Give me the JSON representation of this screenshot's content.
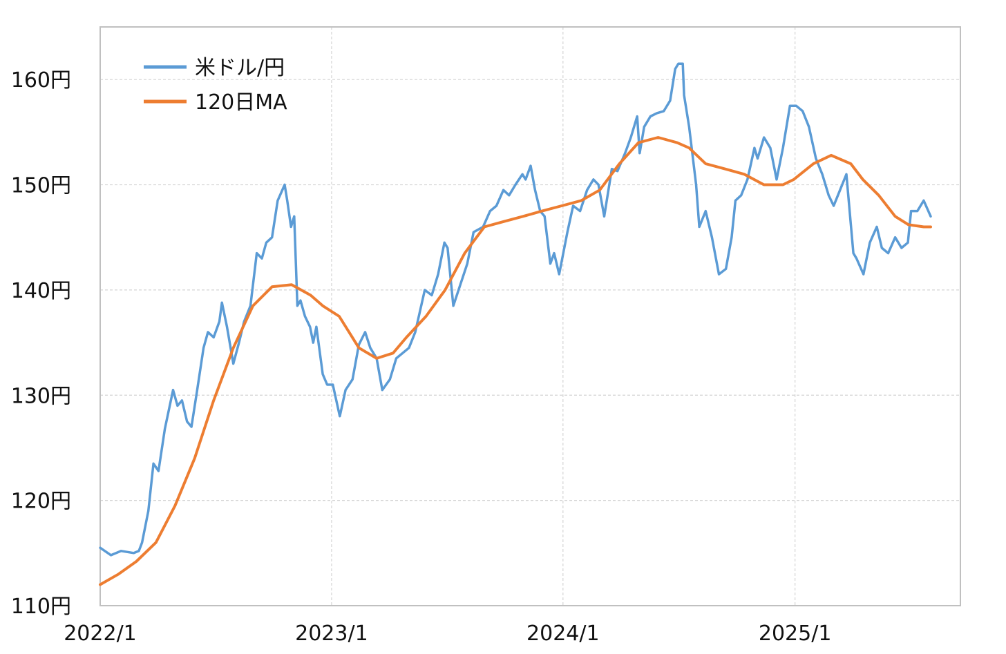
{
  "chart_data": {
    "type": "line",
    "title": "",
    "xlabel": "",
    "ylabel": "",
    "ylim": [
      110,
      165
    ],
    "xlim": [
      "2022-01-03",
      "2025-08-05"
    ],
    "y_ticks": [
      110,
      120,
      130,
      140,
      150,
      160
    ],
    "y_tick_labels": [
      "110円",
      "120円",
      "130円",
      "140円",
      "150円",
      "160円"
    ],
    "x_ticks": [
      "2022-01-03",
      "2023-01-03",
      "2024-01-03",
      "2025-01-03"
    ],
    "x_tick_labels": [
      "2022/1",
      "2023/1",
      "2024/1",
      "2025/1"
    ],
    "grid": true,
    "legend_position": "top-left",
    "series": [
      {
        "name": "米ドル/円",
        "color": "#5b9bd5",
        "x": [
          "2022-01-03",
          "2022-01-20",
          "2022-02-05",
          "2022-02-25",
          "2022-03-05",
          "2022-03-10",
          "2022-03-20",
          "2022-03-28",
          "2022-04-05",
          "2022-04-15",
          "2022-04-28",
          "2022-05-05",
          "2022-05-12",
          "2022-05-20",
          "2022-05-27",
          "2022-06-05",
          "2022-06-15",
          "2022-06-22",
          "2022-07-01",
          "2022-07-10",
          "2022-07-14",
          "2022-07-22",
          "2022-08-01",
          "2022-08-10",
          "2022-08-18",
          "2022-08-28",
          "2022-09-07",
          "2022-09-15",
          "2022-09-22",
          "2022-10-01",
          "2022-10-10",
          "2022-10-21",
          "2022-10-25",
          "2022-10-31",
          "2022-11-05",
          "2022-11-10",
          "2022-11-15",
          "2022-11-22",
          "2022-11-30",
          "2022-12-05",
          "2022-12-10",
          "2022-12-20",
          "2022-12-27",
          "2023-01-05",
          "2023-01-16",
          "2023-01-25",
          "2023-02-05",
          "2023-02-15",
          "2023-02-25",
          "2023-03-05",
          "2023-03-15",
          "2023-03-24",
          "2023-04-05",
          "2023-04-15",
          "2023-04-25",
          "2023-05-05",
          "2023-05-15",
          "2023-05-30",
          "2023-06-10",
          "2023-06-20",
          "2023-06-30",
          "2023-07-05",
          "2023-07-14",
          "2023-07-25",
          "2023-08-05",
          "2023-08-15",
          "2023-08-30",
          "2023-09-10",
          "2023-09-20",
          "2023-10-01",
          "2023-10-10",
          "2023-10-20",
          "2023-10-31",
          "2023-11-05",
          "2023-11-13",
          "2023-11-20",
          "2023-11-28",
          "2023-12-05",
          "2023-12-14",
          "2023-12-20",
          "2023-12-28",
          "2024-01-10",
          "2024-01-19",
          "2024-01-30",
          "2024-02-10",
          "2024-02-20",
          "2024-02-28",
          "2024-03-08",
          "2024-03-20",
          "2024-03-29",
          "2024-04-10",
          "2024-04-19",
          "2024-04-29",
          "2024-05-03",
          "2024-05-10",
          "2024-05-20",
          "2024-05-30",
          "2024-06-10",
          "2024-06-20",
          "2024-06-28",
          "2024-07-03",
          "2024-07-10",
          "2024-07-12",
          "2024-07-20",
          "2024-07-31",
          "2024-08-05",
          "2024-08-15",
          "2024-08-25",
          "2024-09-05",
          "2024-09-16",
          "2024-09-25",
          "2024-10-01",
          "2024-10-10",
          "2024-10-20",
          "2024-10-31",
          "2024-11-05",
          "2024-11-15",
          "2024-11-25",
          "2024-12-05",
          "2024-12-15",
          "2024-12-26",
          "2025-01-05",
          "2025-01-15",
          "2025-01-25",
          "2025-02-05",
          "2025-02-15",
          "2025-02-25",
          "2025-03-05",
          "2025-03-15",
          "2025-03-25",
          "2025-04-05",
          "2025-04-10",
          "2025-04-21",
          "2025-05-01",
          "2025-05-12",
          "2025-05-20",
          "2025-05-30",
          "2025-06-10",
          "2025-06-20",
          "2025-06-30",
          "2025-07-05",
          "2025-07-15",
          "2025-07-25",
          "2025-08-05"
        ],
        "y": [
          115.5,
          114.8,
          115.2,
          115.0,
          115.2,
          116.0,
          119.0,
          123.5,
          122.8,
          126.8,
          130.5,
          129.0,
          129.5,
          127.5,
          127.0,
          130.5,
          134.5,
          136.0,
          135.5,
          137.0,
          138.8,
          136.5,
          133.0,
          135.0,
          137.0,
          138.5,
          143.5,
          143.0,
          144.5,
          145.0,
          148.5,
          150.0,
          148.5,
          146.0,
          147.0,
          138.5,
          139.0,
          137.5,
          136.5,
          135.0,
          136.5,
          132.0,
          131.0,
          131.0,
          128.0,
          130.5,
          131.5,
          134.8,
          136.0,
          134.5,
          133.5,
          130.5,
          131.5,
          133.5,
          134.0,
          134.5,
          136.0,
          140.0,
          139.5,
          141.5,
          144.5,
          144.0,
          138.5,
          140.5,
          142.5,
          145.5,
          146.0,
          147.5,
          148.0,
          149.5,
          149.0,
          150.0,
          151.0,
          150.5,
          151.8,
          149.5,
          147.5,
          147.0,
          142.5,
          143.5,
          141.5,
          145.5,
          148.0,
          147.5,
          149.5,
          150.5,
          150.0,
          147.0,
          151.5,
          151.3,
          153.0,
          154.5,
          156.5,
          153.0,
          155.5,
          156.5,
          156.8,
          157.0,
          158.0,
          161.0,
          161.5,
          161.5,
          158.5,
          155.5,
          150.0,
          146.0,
          147.5,
          145.0,
          141.5,
          142.0,
          145.0,
          148.5,
          149.0,
          150.5,
          153.5,
          152.5,
          154.5,
          153.5,
          150.5,
          153.5,
          157.5,
          157.5,
          157.0,
          155.5,
          152.5,
          151.0,
          149.0,
          148.0,
          149.5,
          151.0,
          143.5,
          143.0,
          141.5,
          144.5,
          146.0,
          144.0,
          143.5,
          145.0,
          144.0,
          144.5,
          147.5,
          147.5,
          148.5,
          147.0
        ]
      },
      {
        "name": "120日MA",
        "color": "#ed7d31",
        "x": [
          "2022-01-03",
          "2022-02-01",
          "2022-03-01",
          "2022-04-01",
          "2022-05-01",
          "2022-06-01",
          "2022-07-01",
          "2022-08-01",
          "2022-09-01",
          "2022-10-01",
          "2022-11-01",
          "2022-12-01",
          "2022-12-20",
          "2023-01-15",
          "2023-02-15",
          "2023-03-15",
          "2023-04-10",
          "2023-05-01",
          "2023-06-01",
          "2023-07-01",
          "2023-08-01",
          "2023-09-01",
          "2023-10-01",
          "2023-11-01",
          "2023-12-01",
          "2024-01-01",
          "2024-02-01",
          "2024-03-01",
          "2024-04-01",
          "2024-05-01",
          "2024-06-01",
          "2024-07-01",
          "2024-07-20",
          "2024-08-15",
          "2024-09-15",
          "2024-10-15",
          "2024-11-15",
          "2024-12-15",
          "2025-01-01",
          "2025-02-01",
          "2025-03-01",
          "2025-04-01",
          "2025-04-20",
          "2025-05-15",
          "2025-06-10",
          "2025-07-01",
          "2025-07-25",
          "2025-08-05"
        ],
        "y": [
          112.0,
          113.0,
          114.2,
          116.0,
          119.5,
          124.0,
          129.5,
          134.5,
          138.5,
          140.3,
          140.5,
          139.5,
          138.5,
          137.5,
          134.5,
          133.5,
          134.0,
          135.5,
          137.5,
          140.0,
          143.5,
          146.0,
          146.5,
          147.0,
          147.5,
          148.0,
          148.5,
          149.5,
          152.0,
          154.0,
          154.5,
          154.0,
          153.5,
          152.0,
          151.5,
          151.0,
          150.0,
          150.0,
          150.5,
          152.0,
          152.8,
          152.0,
          150.5,
          149.0,
          147.0,
          146.2,
          146.0,
          146.0
        ]
      }
    ]
  }
}
